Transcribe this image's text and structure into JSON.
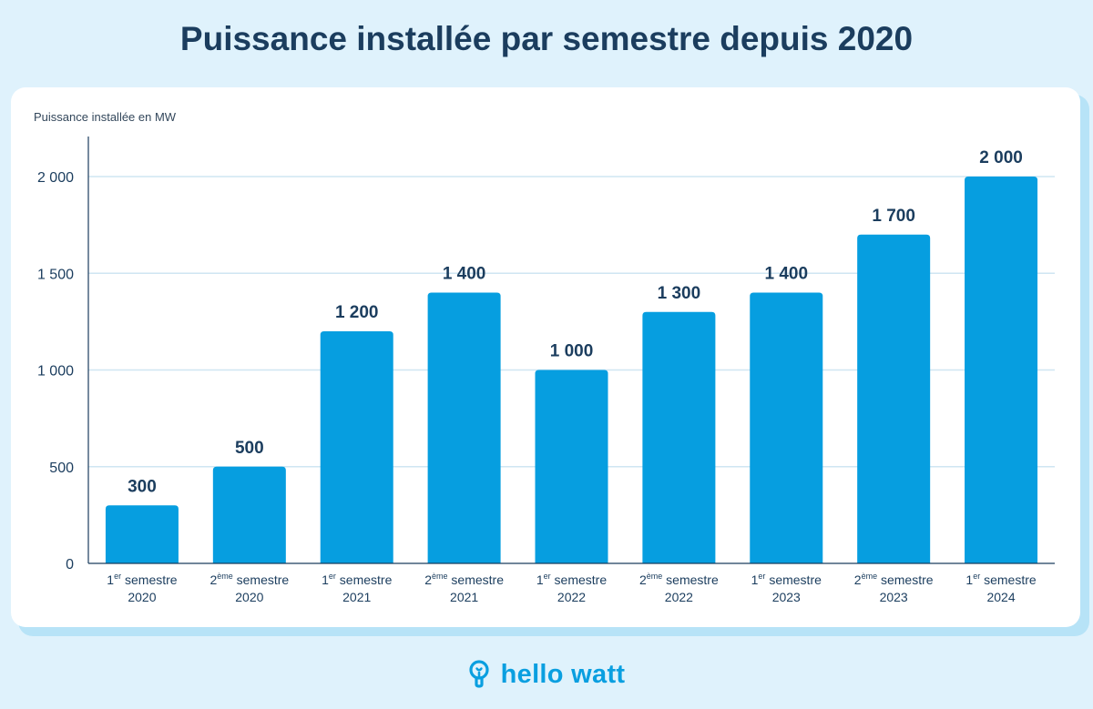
{
  "title": "Puissance installée par semestre depuis 2020",
  "brand": {
    "name": "hello watt",
    "icon": "lightbulb-icon",
    "color": "#0a9fe0"
  },
  "chart_data": {
    "type": "bar",
    "ylabel": "Puissance installée en MW",
    "xlabel": "",
    "ylim": [
      0,
      2000
    ],
    "yticks": [
      "0",
      "500",
      "1 000",
      "1 500",
      "2 000"
    ],
    "ytick_values": [
      0,
      500,
      1000,
      1500,
      2000
    ],
    "grid": true,
    "bar_color": "#069ee0",
    "categories": [
      {
        "ordinal": "1",
        "suffix": "er",
        "label": "semestre",
        "year": "2020"
      },
      {
        "ordinal": "2",
        "suffix": "ème",
        "label": "semestre",
        "year": "2020"
      },
      {
        "ordinal": "1",
        "suffix": "er",
        "label": "semestre",
        "year": "2021"
      },
      {
        "ordinal": "2",
        "suffix": "ème",
        "label": "semestre",
        "year": "2021"
      },
      {
        "ordinal": "1",
        "suffix": "er",
        "label": "semestre",
        "year": "2022"
      },
      {
        "ordinal": "2",
        "suffix": "ème",
        "label": "semestre",
        "year": "2022"
      },
      {
        "ordinal": "1",
        "suffix": "er",
        "label": "semestre",
        "year": "2023"
      },
      {
        "ordinal": "2",
        "suffix": "ème",
        "label": "semestre",
        "year": "2023"
      },
      {
        "ordinal": "1",
        "suffix": "er",
        "label": "semestre",
        "year": "2024"
      }
    ],
    "values": [
      300,
      500,
      1200,
      1400,
      1000,
      1300,
      1400,
      1700,
      2000
    ],
    "value_labels": [
      "300",
      "500",
      "1 200",
      "1 400",
      "1 000",
      "1 300",
      "1 400",
      "1 700",
      "2 000"
    ]
  }
}
